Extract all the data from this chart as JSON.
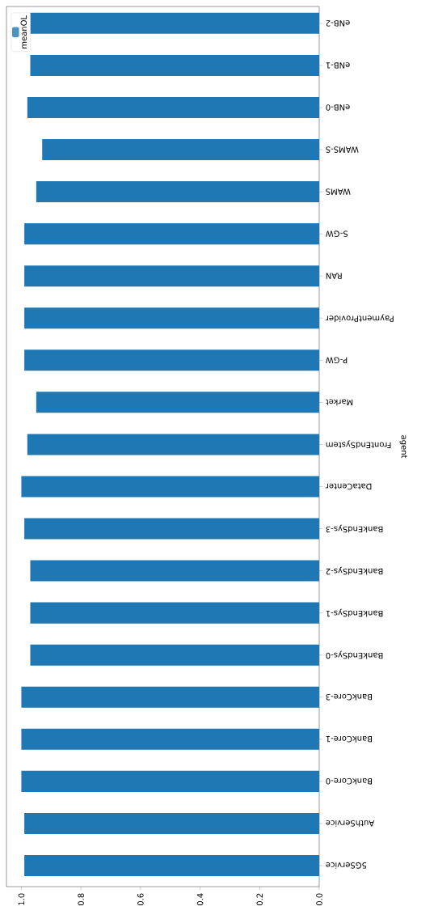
{
  "chart_data": {
    "type": "bar",
    "orientation": "horizontal",
    "ylabel": "agent",
    "categories": [
      "eNB-2",
      "eNB-1",
      "eNB-0",
      "WAMS-S",
      "WAMS",
      "S-GW",
      "RAN",
      "PaymentProvider",
      "P-GW",
      "Market",
      "FrontEndSystem",
      "DataCenter",
      "BankEndSys-3",
      "BankEndSys-2",
      "BankEndSys-1",
      "BankEndSys-0",
      "BankCore-3",
      "BankCore-1",
      "BankCore-0",
      "AuthService",
      "5GService"
    ],
    "series": [
      {
        "name": "meanOL",
        "color": "#1f77b4",
        "values": [
          0.97,
          0.97,
          0.98,
          0.93,
          0.95,
          0.99,
          0.99,
          0.99,
          0.99,
          0.95,
          0.98,
          1.0,
          0.99,
          0.97,
          0.97,
          0.97,
          1.0,
          1.0,
          1.0,
          0.99,
          0.99
        ]
      }
    ],
    "xlim": [
      1.05,
      0
    ],
    "xticks": [
      {
        "value": 0,
        "label": "0.0"
      },
      {
        "value": 0.2,
        "label": "0.2"
      },
      {
        "value": 0.4,
        "label": "0.4"
      },
      {
        "value": 0.6,
        "label": "0.6"
      },
      {
        "value": 0.8,
        "label": "0.8"
      },
      {
        "value": 1.0,
        "label": "1.0"
      }
    ],
    "legend": "top left",
    "grid": false
  }
}
